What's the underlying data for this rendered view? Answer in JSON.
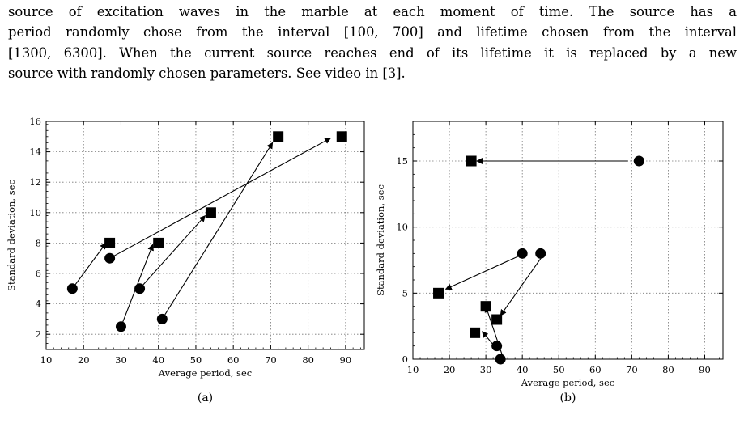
{
  "paragraph": {
    "lines": [
      "source of excitation waves in the marble at each moment of time.  The source has a",
      "period randomly chose from the interval [100, 700] and lifetime chosen from the interval",
      "[1300, 6300]. When the current source reaches end of its lifetime it is replaced by a new",
      "source with randomly chosen parameters. See video in [3]."
    ]
  },
  "chart_data": [
    {
      "type": "scatter",
      "caption": "(a)",
      "xlabel": "Average period, sec",
      "ylabel": "Standard deviation, sec",
      "xlim": [
        10,
        95
      ],
      "ylim": [
        1,
        16
      ],
      "xticks": [
        10,
        20,
        30,
        40,
        50,
        60,
        70,
        80,
        90
      ],
      "yticks": [
        2,
        4,
        6,
        8,
        10,
        12,
        14,
        16
      ],
      "grid": true,
      "circles": [
        [
          17,
          5
        ],
        [
          27,
          7
        ],
        [
          30,
          2.5
        ],
        [
          35,
          5
        ],
        [
          41,
          3
        ]
      ],
      "squares": [
        [
          27,
          8
        ],
        [
          40,
          8
        ],
        [
          54,
          10
        ],
        [
          72,
          15
        ],
        [
          89,
          15
        ]
      ],
      "arrows": [
        {
          "from": [
            17,
            5
          ],
          "to": [
            26,
            8
          ]
        },
        {
          "from": [
            27,
            7
          ],
          "to": [
            86,
            14.9
          ]
        },
        {
          "from": [
            30,
            2.5
          ],
          "to": [
            38.5,
            7.9
          ]
        },
        {
          "from": [
            35,
            5
          ],
          "to": [
            52.5,
            9.8
          ]
        },
        {
          "from": [
            41,
            3
          ],
          "to": [
            70.5,
            14.6
          ]
        }
      ]
    },
    {
      "type": "scatter",
      "caption": "(b)",
      "xlabel": "Average period, sec",
      "ylabel": "Standard deviation, sec",
      "xlim": [
        10,
        95
      ],
      "ylim": [
        0,
        18
      ],
      "xticks": [
        10,
        20,
        30,
        40,
        50,
        60,
        70,
        80,
        90
      ],
      "yticks": [
        0,
        5,
        10,
        15
      ],
      "grid": true,
      "circles": [
        [
          72,
          15
        ],
        [
          40,
          8
        ],
        [
          45,
          8
        ],
        [
          33,
          1
        ],
        [
          34,
          0
        ]
      ],
      "squares": [
        [
          26,
          15
        ],
        [
          17,
          5
        ],
        [
          30,
          4
        ],
        [
          33,
          3
        ],
        [
          27,
          2
        ]
      ],
      "arrows": [
        {
          "from": [
            69,
            15
          ],
          "to": [
            27.5,
            15
          ]
        },
        {
          "from": [
            39,
            7.8
          ],
          "to": [
            19,
            5.3
          ]
        },
        {
          "from": [
            45,
            7.6
          ],
          "to": [
            34,
            3.3
          ]
        },
        {
          "from": [
            34.5,
            0.3
          ],
          "to": [
            30,
            4
          ]
        },
        {
          "from": [
            32,
            1.1
          ],
          "to": [
            29,
            2.1
          ]
        }
      ]
    }
  ]
}
